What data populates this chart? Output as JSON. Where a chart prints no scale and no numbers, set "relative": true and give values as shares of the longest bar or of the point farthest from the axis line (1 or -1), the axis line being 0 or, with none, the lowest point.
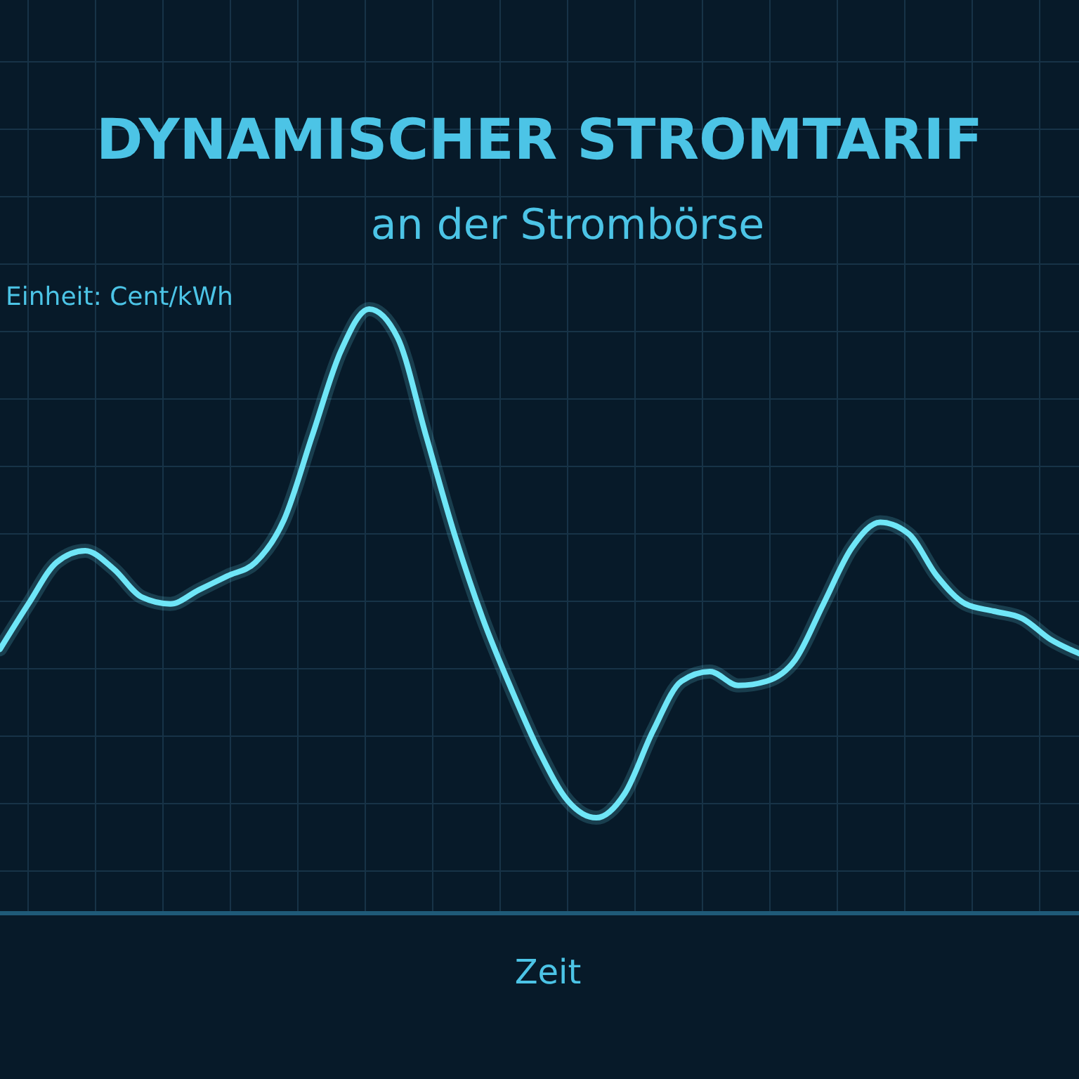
{
  "chart_data": {
    "type": "line",
    "title": "DYNAMISCHER STROMTARIF",
    "subtitle": "an der Strombörse",
    "ylabel": "Einheit: Cent/kWh",
    "xlabel": "Zeit",
    "relative": true,
    "grid": true,
    "marker": "none",
    "line_style": "solid",
    "categories": [
      null,
      null,
      null,
      null,
      null,
      null,
      null,
      null,
      null,
      null,
      null,
      null,
      null,
      null,
      null,
      null,
      null,
      null,
      null,
      null,
      null,
      null,
      null,
      null,
      null,
      null,
      null,
      null,
      null,
      null,
      null,
      null,
      null,
      null,
      null,
      null,
      null,
      null,
      null
    ],
    "series": [
      {
        "color": "#6fe6f7",
        "values": [
          0.437,
          0.512,
          0.581,
          0.6,
          0.57,
          0.523,
          0.512,
          0.535,
          0.558,
          0.581,
          0.651,
          0.791,
          0.93,
          1,
          0.953,
          0.791,
          0.628,
          0.488,
          0.372,
          0.267,
          0.186,
          0.158,
          0.198,
          0.302,
          0.384,
          0.4,
          0.377,
          0.384,
          0.419,
          0.512,
          0.605,
          0.647,
          0.628,
          0.558,
          0.512,
          0.5,
          0.488,
          0.453,
          0.43
        ]
      }
    ]
  }
}
